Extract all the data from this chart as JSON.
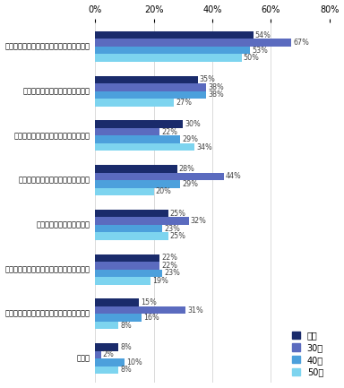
{
  "categories": [
    "新しい経験を通じて、自分を高めたいから",
    "業界の将来性に不安を感じるから",
    "より多くの求人情報を検討したいから",
    "年収水準の高い業界へ移りたいから",
    "働く業界に拘りがないから",
    "今の業界では十分に力を発揮できないから",
    "休日休暇など時間的待遇を改善したいから",
    "その他"
  ],
  "series": {
    "全体": [
      54,
      35,
      30,
      28,
      25,
      22,
      15,
      8
    ],
    "30代": [
      67,
      38,
      22,
      44,
      32,
      22,
      31,
      2
    ],
    "40代": [
      53,
      38,
      29,
      29,
      23,
      23,
      16,
      10
    ],
    "50代": [
      50,
      27,
      34,
      20,
      25,
      19,
      8,
      8
    ]
  },
  "colors": {
    "全体": "#1a2b6b",
    "30代": "#5b6bbf",
    "40代": "#4ca0dc",
    "50代": "#7dd4ef"
  },
  "legend_order": [
    "全体",
    "30代",
    "40代",
    "50代"
  ],
  "xlim": [
    0,
    80
  ],
  "xticks": [
    0,
    20,
    40,
    60,
    80
  ],
  "xticklabels": [
    "0%",
    "20%",
    "40%",
    "60%",
    "80%"
  ],
  "bar_height": 0.17,
  "figsize": [
    3.84,
    4.33
  ],
  "dpi": 100,
  "tick_fontsize": 7,
  "legend_fontsize": 7,
  "category_fontsize": 6.0,
  "value_fontsize": 5.8
}
